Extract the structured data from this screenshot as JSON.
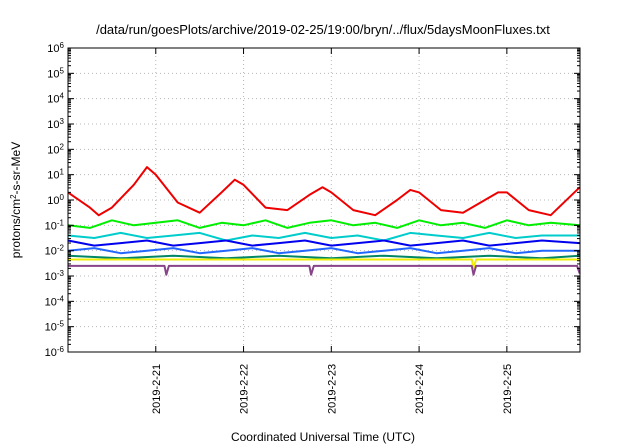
{
  "chart_data": {
    "type": "line",
    "title": "/data/run/goesPlots/archive/2019-02-25/19:00/bryn/../flux/5daysMoonFluxes.txt",
    "xlabel": "Coordinated Universal Time (UTC)",
    "ylabel": {
      "base": "protons/cm",
      "sup": "2",
      "rest": "-s-sr-MeV"
    },
    "yscale": "log",
    "ylim_exp": [
      -6,
      6
    ],
    "xlim": [
      "2019-02-20 00:00",
      "2019-02-25 20:00"
    ],
    "grid": true,
    "legend": "none",
    "x_ticks": [
      "2019-2-21",
      "2019-2-22",
      "2019-2-23",
      "2019-2-24",
      "2019-2-25"
    ],
    "y_ticks": [
      {
        "base": "10",
        "exp": "6"
      },
      {
        "base": "10",
        "exp": "5"
      },
      {
        "base": "10",
        "exp": "4"
      },
      {
        "base": "10",
        "exp": "3"
      },
      {
        "base": "10",
        "exp": "2"
      },
      {
        "base": "10",
        "exp": "1"
      },
      {
        "base": "10",
        "exp": "0"
      },
      {
        "base": "10",
        "exp": "-1"
      },
      {
        "base": "10",
        "exp": "-2"
      },
      {
        "base": "10",
        "exp": "-3"
      },
      {
        "base": "10",
        "exp": "-4"
      },
      {
        "base": "10",
        "exp": "-5"
      },
      {
        "base": "10",
        "exp": "-6"
      }
    ],
    "series": [
      {
        "color": "#ee0000",
        "x_days": [
          0,
          0.25,
          0.35,
          0.5,
          0.75,
          0.9,
          1.0,
          1.25,
          1.5,
          1.75,
          1.9,
          2.0,
          2.25,
          2.5,
          2.75,
          2.9,
          3.0,
          3.25,
          3.5,
          3.75,
          3.9,
          4.0,
          4.25,
          4.5,
          4.75,
          4.9,
          5.0,
          5.25,
          5.5,
          5.83
        ],
        "y_exp": [
          0.3,
          -0.3,
          -0.6,
          -0.3,
          0.6,
          1.3,
          1.0,
          -0.1,
          -0.5,
          0.3,
          0.8,
          0.6,
          -0.3,
          -0.4,
          0.2,
          0.5,
          0.3,
          -0.4,
          -0.6,
          0.0,
          0.4,
          0.3,
          -0.4,
          -0.5,
          0.0,
          0.3,
          0.3,
          -0.4,
          -0.6,
          0.5
        ]
      },
      {
        "color": "#00ee00",
        "x_days": [
          0,
          0.25,
          0.5,
          0.75,
          1.0,
          1.25,
          1.5,
          1.75,
          2.0,
          2.25,
          2.5,
          2.75,
          3.0,
          3.25,
          3.5,
          3.75,
          4.0,
          4.25,
          4.5,
          4.75,
          5.0,
          5.25,
          5.5,
          5.83
        ],
        "y_exp": [
          -1.0,
          -1.1,
          -0.8,
          -1.0,
          -0.9,
          -0.8,
          -1.1,
          -0.9,
          -1.0,
          -0.8,
          -1.1,
          -0.9,
          -0.8,
          -1.0,
          -0.9,
          -1.1,
          -0.8,
          -1.0,
          -0.9,
          -1.1,
          -0.8,
          -1.0,
          -0.9,
          -1.0
        ]
      },
      {
        "color": "#00cccc",
        "x_days": [
          0,
          0.3,
          0.6,
          0.9,
          1.2,
          1.5,
          1.8,
          2.1,
          2.4,
          2.7,
          3.0,
          3.3,
          3.6,
          3.9,
          4.2,
          4.5,
          4.8,
          5.1,
          5.4,
          5.83
        ],
        "y_exp": [
          -1.4,
          -1.5,
          -1.3,
          -1.5,
          -1.4,
          -1.3,
          -1.6,
          -1.4,
          -1.5,
          -1.3,
          -1.5,
          -1.4,
          -1.6,
          -1.3,
          -1.4,
          -1.5,
          -1.3,
          -1.5,
          -1.4,
          -1.4
        ]
      },
      {
        "color": "#0000ee",
        "x_days": [
          0,
          0.3,
          0.6,
          0.9,
          1.2,
          1.5,
          1.8,
          2.1,
          2.4,
          2.7,
          3.0,
          3.3,
          3.6,
          3.9,
          4.2,
          4.5,
          4.8,
          5.1,
          5.4,
          5.83
        ],
        "y_exp": [
          -1.6,
          -1.8,
          -1.7,
          -1.6,
          -1.8,
          -1.7,
          -1.6,
          -1.8,
          -1.7,
          -1.6,
          -1.8,
          -1.7,
          -1.6,
          -1.8,
          -1.7,
          -1.6,
          -1.8,
          -1.7,
          -1.6,
          -1.7
        ]
      },
      {
        "color": "#2266ff",
        "x_days": [
          0,
          0.3,
          0.6,
          0.9,
          1.2,
          1.5,
          1.8,
          2.1,
          2.4,
          2.7,
          3.0,
          3.3,
          3.6,
          3.9,
          4.2,
          4.5,
          4.8,
          5.1,
          5.4,
          5.83
        ],
        "y_exp": [
          -2.0,
          -1.9,
          -2.1,
          -2.0,
          -1.9,
          -2.1,
          -2.0,
          -1.9,
          -2.1,
          -2.0,
          -1.9,
          -2.1,
          -2.0,
          -1.9,
          -2.1,
          -2.0,
          -1.9,
          -2.1,
          -2.0,
          -2.0
        ]
      },
      {
        "color": "#008866",
        "x_days": [
          0,
          0.6,
          1.2,
          1.8,
          2.4,
          3.0,
          3.6,
          4.2,
          4.8,
          5.4,
          5.83
        ],
        "y_exp": [
          -2.2,
          -2.3,
          -2.2,
          -2.3,
          -2.2,
          -2.3,
          -2.2,
          -2.3,
          -2.2,
          -2.3,
          -2.2
        ]
      },
      {
        "color": "#eeee00",
        "x_days": [
          0,
          1.0,
          2.0,
          3.0,
          4.0,
          4.6,
          4.62,
          4.65,
          5.0,
          5.83
        ],
        "y_exp": [
          -2.35,
          -2.35,
          -2.35,
          -2.35,
          -2.35,
          -2.35,
          -2.7,
          -2.35,
          -2.35,
          -2.35
        ]
      },
      {
        "color": "#884488",
        "x_days": [
          0,
          0.5,
          1.0,
          1.1,
          1.12,
          1.15,
          1.5,
          2.0,
          2.75,
          2.77,
          2.8,
          3.5,
          4.0,
          4.6,
          4.62,
          4.65,
          5.0,
          5.5,
          5.8,
          5.83
        ],
        "y_exp": [
          -2.6,
          -2.6,
          -2.6,
          -2.6,
          -2.95,
          -2.6,
          -2.6,
          -2.6,
          -2.6,
          -2.95,
          -2.6,
          -2.6,
          -2.6,
          -2.6,
          -2.95,
          -2.6,
          -2.6,
          -2.6,
          -2.6,
          -2.9
        ]
      }
    ]
  }
}
